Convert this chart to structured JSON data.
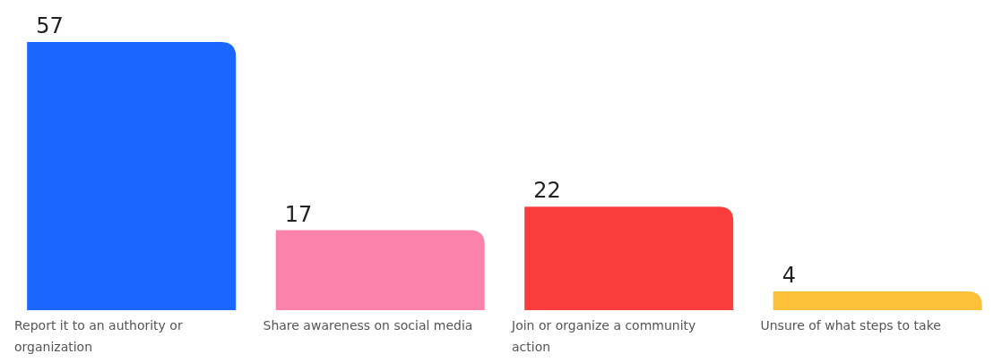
{
  "chart_data": {
    "type": "bar",
    "categories": [
      "Report it to an authority or organization",
      "Share awareness on social media",
      "Join or organize a community action",
      "Unsure of what steps to take"
    ],
    "values": [
      57,
      17,
      22,
      4
    ],
    "colors": [
      "#1a66ff",
      "#fb82ab",
      "#fb3c3c",
      "#fcc139"
    ],
    "data_labels": true
  }
}
